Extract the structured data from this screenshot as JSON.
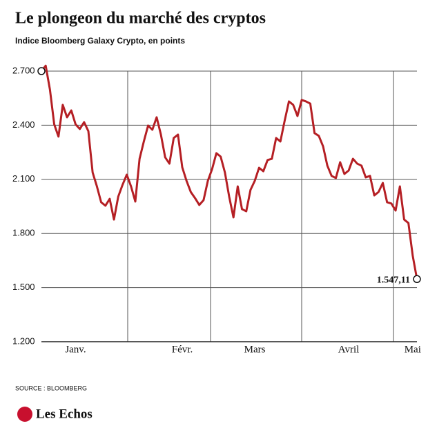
{
  "chart_data": {
    "type": "line",
    "title": "Le plongeon du marché des cryptos",
    "subtitle": "Indice Bloomberg Galaxy Crypto, en points",
    "source": "SOURCE : BLOOMBERG",
    "logo": "Les Echos",
    "color": "#b51f24",
    "grid": true,
    "ylim": [
      1200,
      2700
    ],
    "yticks": [
      {
        "value": 1200,
        "label": "1.200"
      },
      {
        "value": 1500,
        "label": "1.500"
      },
      {
        "value": 1800,
        "label": "1.800"
      },
      {
        "value": 2100,
        "label": "2.100"
      },
      {
        "value": 2400,
        "label": "2.400"
      },
      {
        "value": 2700,
        "label": "2.700"
      }
    ],
    "categories": [
      null,
      null,
      null,
      null,
      null,
      null,
      null,
      null,
      "Janv.",
      null,
      null,
      null,
      null,
      null,
      null,
      null,
      null,
      null,
      null,
      null,
      null,
      null,
      null,
      null,
      null,
      null,
      null,
      null,
      null,
      null,
      null,
      null,
      null,
      "Févr.",
      null,
      null,
      null,
      null,
      null,
      null,
      null,
      null,
      null,
      null,
      null,
      null,
      null,
      null,
      null,
      null,
      "Mars",
      null,
      null,
      null,
      null,
      null,
      null,
      null,
      null,
      null,
      null,
      null,
      null,
      null,
      null,
      null,
      null,
      null,
      null,
      null,
      null,
      null,
      "Avril",
      null,
      null,
      null,
      null,
      null,
      null,
      null,
      null,
      null,
      null,
      null,
      null,
      null,
      null,
      "Mai",
      null
    ],
    "values": [
      2700,
      2730,
      2597,
      2405,
      2337,
      2513,
      2444,
      2482,
      2405,
      2379,
      2417,
      2367,
      2138,
      2061,
      1973,
      1954,
      1992,
      1877,
      2004,
      2069,
      2126,
      2061,
      1977,
      2214,
      2310,
      2398,
      2375,
      2444,
      2348,
      2222,
      2187,
      2329,
      2348,
      2167,
      2092,
      2030,
      1996,
      1958,
      1985,
      2092,
      2157,
      2245,
      2226,
      2138,
      2004,
      1889,
      2061,
      1935,
      1923,
      2042,
      2092,
      2164,
      2145,
      2207,
      2214,
      2329,
      2310,
      2425,
      2532,
      2513,
      2451,
      2540,
      2532,
      2520,
      2356,
      2341,
      2283,
      2176,
      2119,
      2107,
      2195,
      2130,
      2149,
      2214,
      2187,
      2176,
      2111,
      2119,
      2011,
      2030,
      2080,
      1973,
      1966,
      1927,
      2061,
      1877,
      1858,
      1678,
      1547.11
    ],
    "value_labels": [
      null,
      null,
      null,
      null,
      null,
      null,
      null,
      null,
      null,
      null,
      null,
      null,
      null,
      null,
      null,
      null,
      null,
      null,
      null,
      null,
      null,
      null,
      null,
      null,
      null,
      null,
      null,
      null,
      null,
      null,
      null,
      null,
      null,
      null,
      null,
      null,
      null,
      null,
      null,
      null,
      null,
      null,
      null,
      null,
      null,
      null,
      null,
      null,
      null,
      null,
      null,
      null,
      null,
      null,
      null,
      null,
      null,
      null,
      null,
      null,
      null,
      null,
      null,
      null,
      null,
      null,
      null,
      null,
      null,
      null,
      null,
      null,
      null,
      null,
      null,
      null,
      null,
      null,
      null,
      null,
      null,
      null,
      null,
      null,
      null,
      null,
      null,
      null,
      "1.547,11"
    ]
  }
}
